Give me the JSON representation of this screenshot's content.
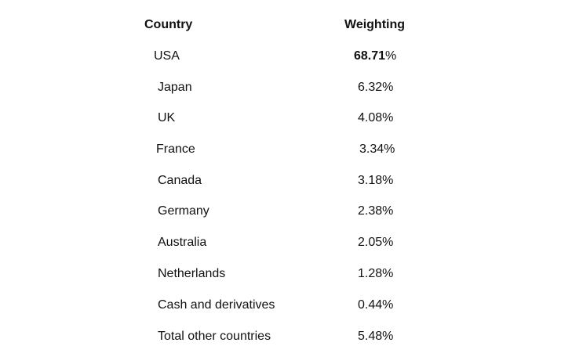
{
  "table": {
    "headers": {
      "country": "Country",
      "weighting": "Weighting"
    },
    "rows": [
      {
        "country": "USA",
        "weighting_num": "68.71",
        "weighting_pct": "%"
      },
      {
        "country": "Japan",
        "weighting": "6.32%"
      },
      {
        "country": "UK",
        "weighting": "4.08%"
      },
      {
        "country": "France",
        "weighting": "3.34%"
      },
      {
        "country": "Canada",
        "weighting": "3.18%"
      },
      {
        "country": "Germany",
        "weighting": "2.38%"
      },
      {
        "country": "Australia",
        "weighting": "2.05%"
      },
      {
        "country": "Netherlands",
        "weighting": "1.28%"
      },
      {
        "country": "Cash and derivatives",
        "weighting": "0.44%"
      },
      {
        "country": "Total other countries",
        "weighting": "5.48%"
      }
    ]
  }
}
